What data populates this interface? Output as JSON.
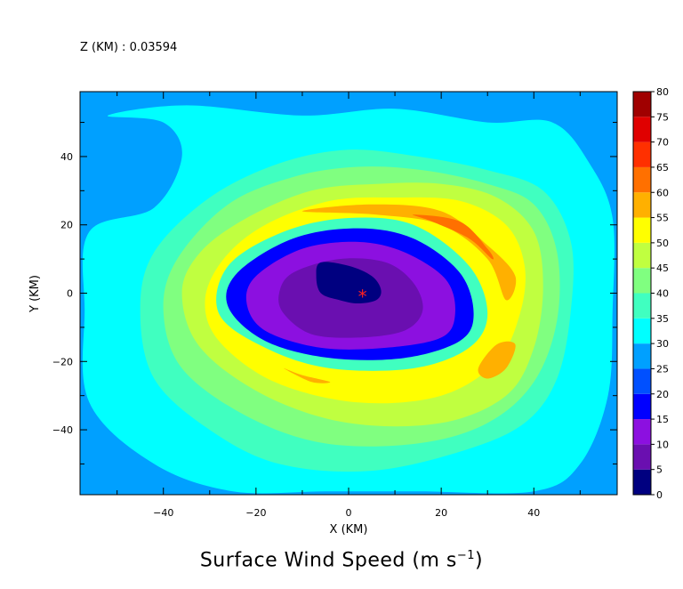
{
  "header": {
    "level_label": "Z (KM) : 0.03594"
  },
  "chart_data": {
    "type": "heatmap",
    "title": "Surface Wind Speed",
    "title_unit_base": "(m s",
    "title_unit_exp": "−1",
    "title_unit_close": ")",
    "xlabel": "X (KM)",
    "ylabel": "Y (KM)",
    "xlim": [
      -58,
      58
    ],
    "ylim": [
      -59,
      59
    ],
    "xticks": [
      -40,
      -20,
      0,
      20,
      40
    ],
    "yticks": [
      -40,
      -20,
      0,
      20,
      40
    ],
    "grid": false,
    "colorbar": {
      "levels": [
        0,
        5,
        10,
        15,
        20,
        25,
        30,
        35,
        40,
        45,
        50,
        55,
        60,
        65,
        70,
        75,
        80
      ],
      "colors": [
        "#000080",
        "#6a0fb0",
        "#8c10e0",
        "#0000ff",
        "#0050ff",
        "#00a0ff",
        "#00ffff",
        "#40ffc0",
        "#80ff80",
        "#c0ff40",
        "#ffff00",
        "#ffb000",
        "#ff7000",
        "#ff3000",
        "#e00000",
        "#a00000"
      ],
      "placement": "right"
    },
    "background_level": 25,
    "field_contours": [
      {
        "level_min": 30,
        "points": [
          [
            -52,
            52
          ],
          [
            -35,
            55
          ],
          [
            -10,
            52
          ],
          [
            10,
            54
          ],
          [
            30,
            50
          ],
          [
            44,
            50
          ],
          [
            52,
            38
          ],
          [
            57,
            22
          ],
          [
            57,
            -5
          ],
          [
            56,
            -30
          ],
          [
            50,
            -50
          ],
          [
            40,
            -58
          ],
          [
            15,
            -58
          ],
          [
            -5,
            -58
          ],
          [
            -25,
            -58
          ],
          [
            -42,
            -50
          ],
          [
            -56,
            -32
          ],
          [
            -57,
            -5
          ],
          [
            -56,
            18
          ],
          [
            -42,
            25
          ],
          [
            -36,
            40
          ],
          [
            -40,
            50
          ]
        ]
      },
      {
        "level_min": 35,
        "points": [
          [
            -30,
            28
          ],
          [
            -15,
            38
          ],
          [
            0,
            42
          ],
          [
            15,
            40
          ],
          [
            30,
            36
          ],
          [
            42,
            30
          ],
          [
            48,
            15
          ],
          [
            48,
            -5
          ],
          [
            45,
            -25
          ],
          [
            38,
            -38
          ],
          [
            25,
            -46
          ],
          [
            5,
            -52
          ],
          [
            -15,
            -50
          ],
          [
            -30,
            -40
          ],
          [
            -42,
            -25
          ],
          [
            -45,
            -5
          ],
          [
            -42,
            12
          ]
        ]
      },
      {
        "level_min": 40,
        "points": [
          [
            -26,
            26
          ],
          [
            -12,
            34
          ],
          [
            2,
            37
          ],
          [
            16,
            36
          ],
          [
            30,
            32
          ],
          [
            40,
            26
          ],
          [
            45,
            12
          ],
          [
            45,
            -8
          ],
          [
            40,
            -26
          ],
          [
            30,
            -38
          ],
          [
            15,
            -44
          ],
          [
            -5,
            -44
          ],
          [
            -22,
            -36
          ],
          [
            -36,
            -22
          ],
          [
            -40,
            -5
          ],
          [
            -37,
            10
          ]
        ]
      },
      {
        "level_min": 45,
        "points": [
          [
            -22,
            22
          ],
          [
            -8,
            30
          ],
          [
            6,
            32
          ],
          [
            20,
            32
          ],
          [
            32,
            28
          ],
          [
            40,
            18
          ],
          [
            42,
            2
          ],
          [
            40,
            -16
          ],
          [
            34,
            -30
          ],
          [
            20,
            -38
          ],
          [
            0,
            -38
          ],
          [
            -18,
            -30
          ],
          [
            -32,
            -16
          ],
          [
            -36,
            0
          ],
          [
            -32,
            12
          ]
        ]
      },
      {
        "level_min": 50,
        "points": [
          [
            -18,
            20
          ],
          [
            -4,
            27
          ],
          [
            10,
            28
          ],
          [
            24,
            27
          ],
          [
            34,
            20
          ],
          [
            38,
            8
          ],
          [
            37,
            -6
          ],
          [
            32,
            -20
          ],
          [
            20,
            -30
          ],
          [
            2,
            -32
          ],
          [
            -16,
            -26
          ],
          [
            -28,
            -14
          ],
          [
            -31,
            -2
          ],
          [
            -27,
            10
          ]
        ]
      },
      {
        "level_min": 55,
        "points": [
          [
            -10,
            24
          ],
          [
            5,
            26
          ],
          [
            20,
            24
          ],
          [
            30,
            14
          ],
          [
            36,
            5
          ],
          [
            34,
            -2
          ],
          [
            30,
            10
          ],
          [
            20,
            20
          ],
          [
            6,
            23
          ]
        ]
      },
      {
        "level_min": 55,
        "points": [
          [
            28,
            -22
          ],
          [
            32,
            -15
          ],
          [
            36,
            -15
          ],
          [
            34,
            -22
          ],
          [
            30,
            -25
          ]
        ]
      },
      {
        "level_min": 55,
        "points": [
          [
            -14,
            -22
          ],
          [
            -8,
            -26
          ],
          [
            -4,
            -26
          ],
          [
            -10,
            -24
          ]
        ]
      },
      {
        "level_min": 60,
        "points": [
          [
            14,
            23
          ],
          [
            24,
            21
          ],
          [
            30,
            13
          ],
          [
            31,
            10
          ],
          [
            26,
            16
          ],
          [
            18,
            21
          ]
        ]
      },
      {
        "level_min": 35,
        "points": [
          [
            -26,
            8
          ],
          [
            -14,
            18
          ],
          [
            0,
            22
          ],
          [
            14,
            20
          ],
          [
            26,
            8
          ],
          [
            30,
            -6
          ],
          [
            26,
            -16
          ],
          [
            14,
            -22
          ],
          [
            -4,
            -22
          ],
          [
            -18,
            -16
          ],
          [
            -28,
            -6
          ]
        ]
      },
      {
        "level_min": 15,
        "points": [
          [
            -24,
            6
          ],
          [
            -12,
            16
          ],
          [
            2,
            19
          ],
          [
            14,
            16
          ],
          [
            24,
            6
          ],
          [
            27,
            -6
          ],
          [
            24,
            -14
          ],
          [
            12,
            -19
          ],
          [
            -4,
            -19
          ],
          [
            -18,
            -14
          ],
          [
            -26,
            -4
          ]
        ]
      },
      {
        "level_min": 10,
        "points": [
          [
            -20,
            5
          ],
          [
            -10,
            13
          ],
          [
            2,
            15
          ],
          [
            12,
            12
          ],
          [
            21,
            4
          ],
          [
            23,
            -6
          ],
          [
            20,
            -13
          ],
          [
            8,
            -16
          ],
          [
            -6,
            -16
          ],
          [
            -18,
            -11
          ],
          [
            -22,
            -3
          ]
        ]
      },
      {
        "level_min": 5,
        "points": [
          [
            -12,
            6
          ],
          [
            -2,
            10
          ],
          [
            8,
            9
          ],
          [
            14,
            3
          ],
          [
            16,
            -5
          ],
          [
            12,
            -11
          ],
          [
            2,
            -13
          ],
          [
            -8,
            -12
          ],
          [
            -14,
            -6
          ],
          [
            -15,
            0
          ]
        ]
      },
      {
        "level_min": 0,
        "points": [
          [
            -6,
            9
          ],
          [
            0,
            8
          ],
          [
            5,
            5
          ],
          [
            7,
            1
          ],
          [
            6,
            -2
          ],
          [
            2,
            -3
          ],
          [
            -2,
            -2
          ],
          [
            -6,
            0
          ],
          [
            -7,
            5
          ]
        ]
      }
    ],
    "center_marker": {
      "x": 3,
      "y": -1,
      "symbol": "*"
    }
  }
}
